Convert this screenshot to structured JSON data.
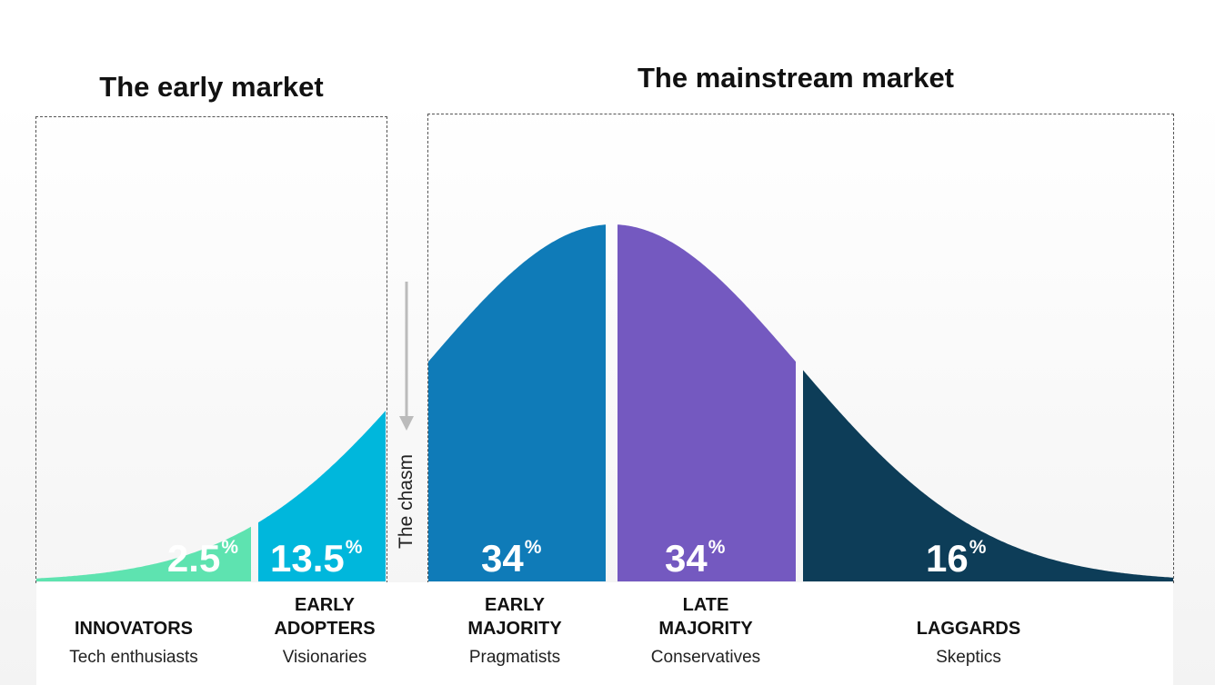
{
  "titles": {
    "early_market": "The early market",
    "mainstream_market": "The mainstream market"
  },
  "chasm_label": "The chasm",
  "segments": [
    {
      "line1": "",
      "line2": "INNOVATORS",
      "subtitle": "Tech enthusiasts",
      "value": "2.5",
      "unit": "%",
      "color": "#5ee3b0"
    },
    {
      "line1": "EARLY",
      "line2": "ADOPTERS",
      "subtitle": "Visionaries",
      "value": "13.5",
      "unit": "%",
      "color": "#00b7dc"
    },
    {
      "line1": "EARLY",
      "line2": "MAJORITY",
      "subtitle": "Pragmatists",
      "value": "34",
      "unit": "%",
      "color": "#0f7bb8"
    },
    {
      "line1": "LATE",
      "line2": "MAJORITY",
      "subtitle": "Conservatives",
      "value": "34",
      "unit": "%",
      "color": "#7459c0"
    },
    {
      "line1": "",
      "line2": "LAGGARDS",
      "subtitle": "Skeptics",
      "value": "16",
      "unit": "%",
      "color": "#0d3d58"
    }
  ],
  "colors": {
    "box_border": "#555555",
    "arrow": "#bbbbbb",
    "text": "#111111"
  }
}
